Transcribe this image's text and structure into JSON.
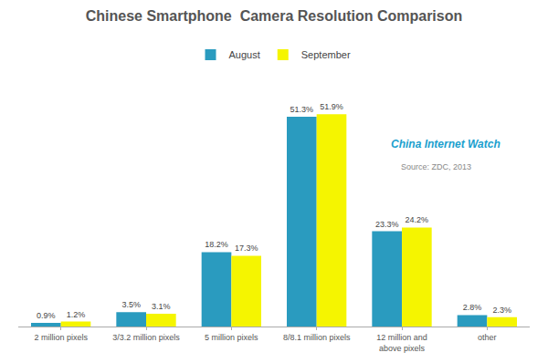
{
  "chart_data": {
    "type": "bar",
    "title": "Chinese Smartphone  Camera Resolution Comparison",
    "categories": [
      "2 million pixels",
      "3/3.2 million pixels",
      "5 million pixels",
      "8/8.1 million pixels",
      "12 million and\nabove pixels",
      "other"
    ],
    "series": [
      {
        "name": "August",
        "color": "#2a9bbf",
        "values": [
          0.9,
          3.5,
          18.2,
          51.3,
          23.3,
          2.8
        ],
        "value_labels": [
          "0.9%",
          "3.5%",
          "18.2%",
          "51.3%",
          "23.3%",
          "2.8%"
        ]
      },
      {
        "name": "September",
        "color": "#f5f500",
        "values": [
          1.2,
          3.1,
          17.3,
          51.9,
          24.2,
          2.3
        ],
        "value_labels": [
          "1.2%",
          "3.1%",
          "17.3%",
          "51.9%",
          "24.2%",
          "2.3%"
        ]
      }
    ],
    "ylim": [
      0,
      62
    ],
    "grid": false,
    "legend": "top",
    "data_labels": true,
    "tick_labels": "x",
    "annotations": [
      {
        "text": "China Internet Watch",
        "color": "#1a9fce"
      },
      {
        "text": "Source: ZDC, 2013",
        "color": "#888888"
      }
    ]
  }
}
